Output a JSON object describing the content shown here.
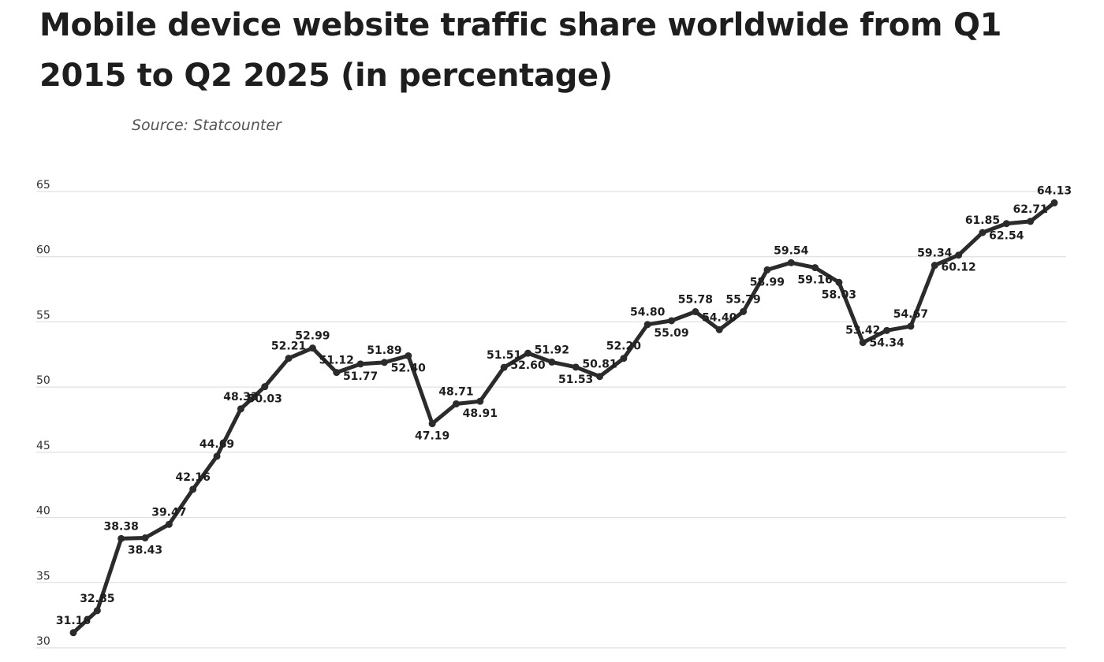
{
  "chart_data": {
    "type": "line",
    "title": "Mobile device website traffic share worldwide from Q1 2015 to Q2 2025 (in percentage)",
    "source": "Source: Statcounter",
    "xlabel": "",
    "ylabel": "",
    "ylim": [
      30,
      65
    ],
    "yticks": [
      30,
      35,
      40,
      45,
      50,
      55,
      60,
      65
    ],
    "grid": true,
    "legend": "none",
    "colors": {
      "line": "#2b2b2b",
      "grid": "#d9d9d9",
      "text": "#1e1e1e"
    },
    "values": [
      31.16,
      32.85,
      38.38,
      38.43,
      39.47,
      42.16,
      44.69,
      48.33,
      50.03,
      52.21,
      52.99,
      51.12,
      51.77,
      51.89,
      52.4,
      47.19,
      48.71,
      48.91,
      51.51,
      52.6,
      51.92,
      51.53,
      50.81,
      52.2,
      54.8,
      55.09,
      55.78,
      54.4,
      55.79,
      58.99,
      59.54,
      59.16,
      58.03,
      53.42,
      54.34,
      54.67,
      59.34,
      60.12,
      61.85,
      62.54,
      62.71,
      64.13
    ],
    "labels": [
      "31.16",
      "32.85",
      "38.38",
      "38.43",
      "39.47",
      "42.16",
      "44.69",
      "48.33",
      "50.03",
      "52.21",
      "52.99",
      "51.12",
      "51.77",
      "51.89",
      "52.40",
      "47.19",
      "48.71",
      "48.91",
      "51.51",
      "52.60",
      "51.92",
      "51.53",
      "50.81",
      "52.20",
      "54.80",
      "55.09",
      "55.78",
      "54.40",
      "55.79",
      "58.99",
      "59.54",
      "59.16",
      "58.03",
      "53.42",
      "54.34",
      "54.67",
      "59.34",
      "60.12",
      "61.85",
      "62.54",
      "62.71",
      "64.13"
    ],
    "label_positions": [
      "above",
      "above",
      "above",
      "below",
      "above",
      "above",
      "above",
      "above",
      "below",
      "above",
      "above",
      "above",
      "below",
      "above",
      "below",
      "below",
      "above",
      "below",
      "above",
      "below",
      "above",
      "below",
      "above",
      "above",
      "above",
      "below",
      "above",
      "above",
      "above",
      "below",
      "above",
      "below",
      "below",
      "above",
      "below",
      "above",
      "above",
      "below",
      "above",
      "below",
      "above",
      "above"
    ]
  }
}
